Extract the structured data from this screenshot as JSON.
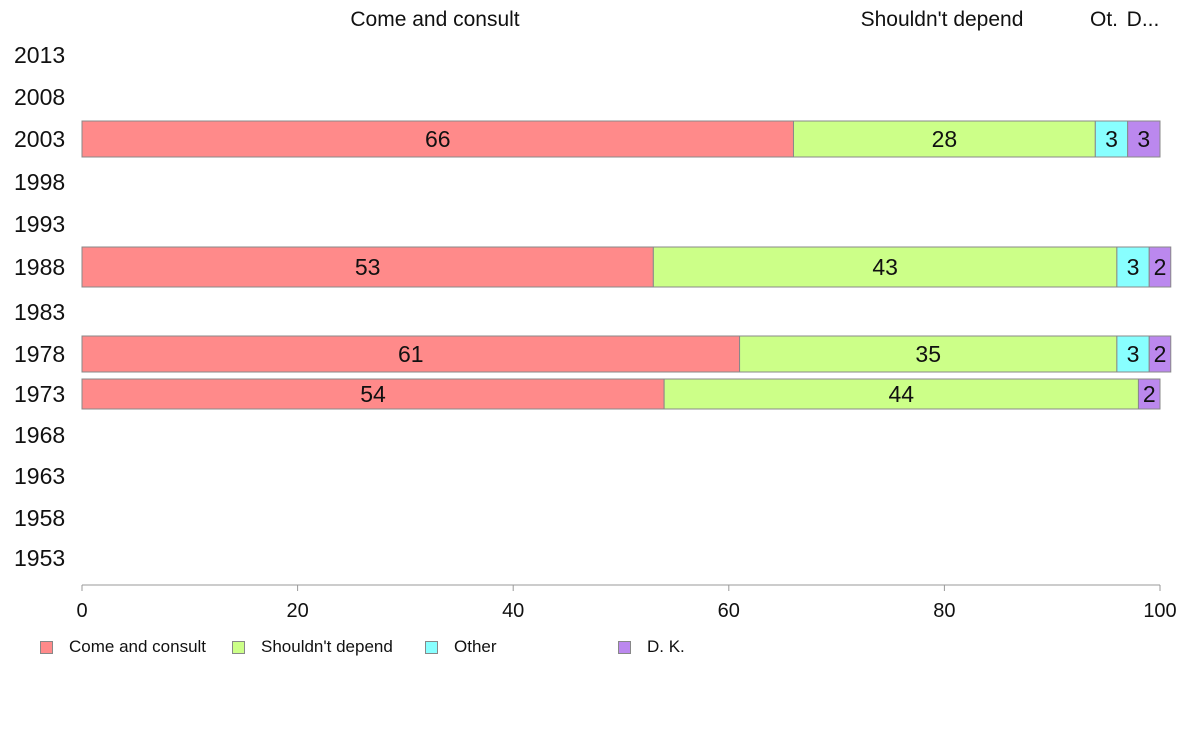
{
  "chart_data": {
    "type": "bar",
    "orientation": "horizontal",
    "stacked": true,
    "categories": [
      "2013",
      "2008",
      "2003",
      "1998",
      "1993",
      "1988",
      "1983",
      "1978",
      "1973",
      "1968",
      "1963",
      "1958",
      "1953"
    ],
    "series": [
      {
        "name": "Come and consult",
        "color": "#ff8a8a",
        "values": [
          null,
          null,
          66,
          null,
          null,
          53,
          null,
          61,
          54,
          null,
          null,
          null,
          null
        ]
      },
      {
        "name": "Shouldn't depend",
        "color": "#ccff88",
        "values": [
          null,
          null,
          28,
          null,
          null,
          43,
          null,
          35,
          44,
          null,
          null,
          null,
          null
        ]
      },
      {
        "name": "Other",
        "color": "#88ffff",
        "values": [
          null,
          null,
          3,
          null,
          null,
          3,
          null,
          3,
          null,
          null,
          null,
          null,
          null
        ]
      },
      {
        "name": "D. K.",
        "color": "#bb88ee",
        "values": [
          null,
          null,
          3,
          null,
          null,
          2,
          null,
          2,
          2,
          null,
          null,
          null,
          null
        ]
      }
    ],
    "top_labels": [
      "Come and consult",
      "Shouldn't depend",
      "Ot.",
      "D..."
    ],
    "xlim": [
      0,
      100
    ],
    "xticks": [
      0,
      20,
      40,
      60,
      80,
      100
    ],
    "legend_position": "bottom",
    "grid": false
  }
}
